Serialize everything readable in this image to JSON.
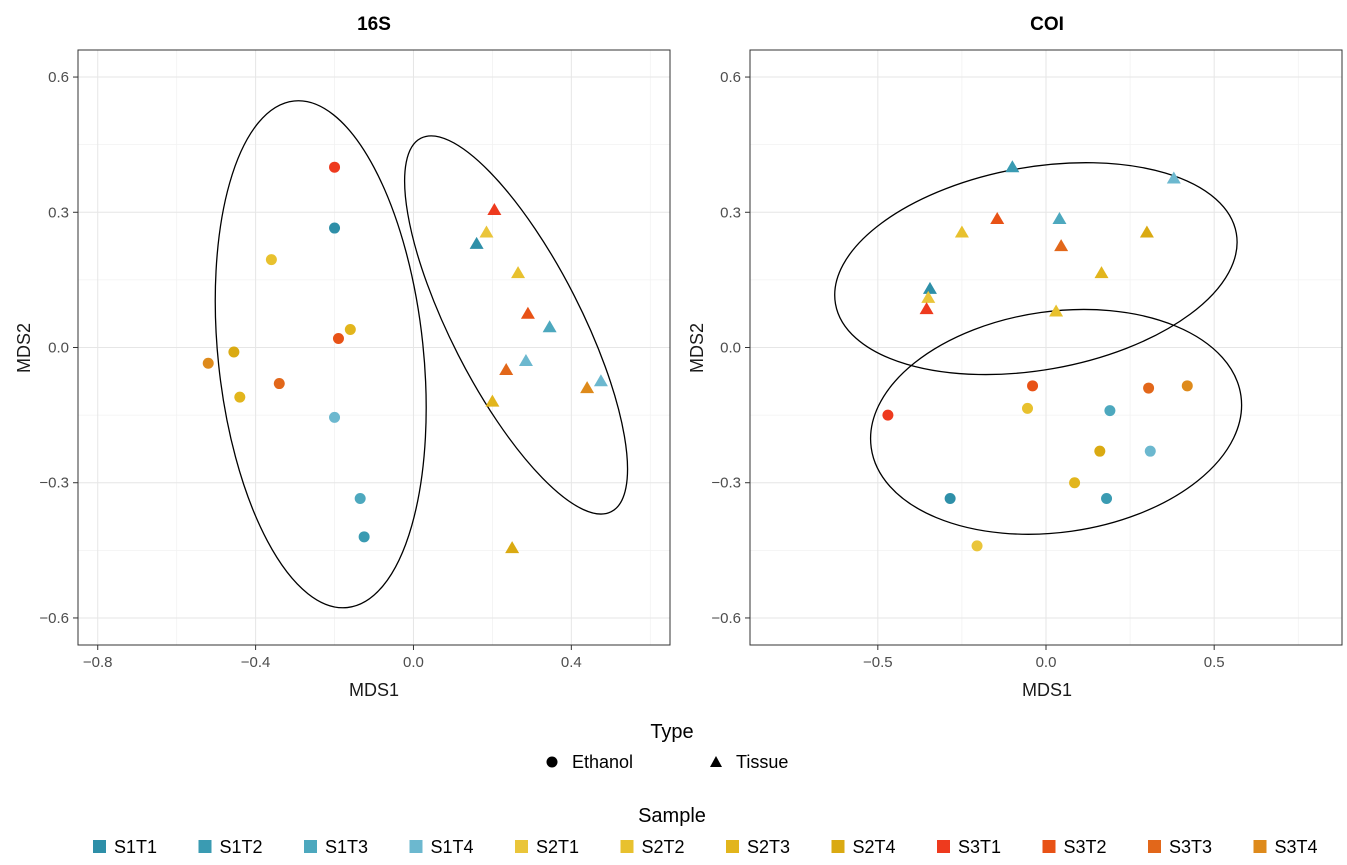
{
  "chart_data": [
    {
      "type": "scatter",
      "title": "16S",
      "xlabel": "MDS1",
      "ylabel": "MDS2",
      "xlim": [
        -0.85,
        0.65
      ],
      "ylim": [
        -0.66,
        0.66
      ],
      "xticks": [
        -0.8,
        -0.4,
        0.0,
        0.4
      ],
      "xtick_labels": [
        "−0.8",
        "−0.4",
        "0.0",
        "0.4"
      ],
      "yticks": [
        -0.6,
        -0.3,
        0.0,
        0.3,
        0.6
      ],
      "ytick_labels": [
        "−0.6",
        "−0.3",
        "0.0",
        "0.3",
        "0.6"
      ],
      "grid": true,
      "points": [
        {
          "sample": "S3T1",
          "type": "Ethanol",
          "x": -0.2,
          "y": 0.4
        },
        {
          "sample": "S1T1",
          "type": "Ethanol",
          "x": -0.2,
          "y": 0.265
        },
        {
          "sample": "S2T2",
          "type": "Ethanol",
          "x": -0.36,
          "y": 0.195
        },
        {
          "sample": "S2T3",
          "type": "Ethanol",
          "x": -0.16,
          "y": 0.04
        },
        {
          "sample": "S3T2",
          "type": "Ethanol",
          "x": -0.19,
          "y": 0.02
        },
        {
          "sample": "S2T4",
          "type": "Ethanol",
          "x": -0.455,
          "y": -0.01
        },
        {
          "sample": "S3T4",
          "type": "Ethanol",
          "x": -0.52,
          "y": -0.035
        },
        {
          "sample": "S3T3",
          "type": "Ethanol",
          "x": -0.34,
          "y": -0.08
        },
        {
          "sample": "S2T3",
          "type": "Ethanol",
          "x": -0.44,
          "y": -0.11
        },
        {
          "sample": "S1T4",
          "type": "Ethanol",
          "x": -0.2,
          "y": -0.155
        },
        {
          "sample": "S1T3",
          "type": "Ethanol",
          "x": -0.135,
          "y": -0.335
        },
        {
          "sample": "S1T2",
          "type": "Ethanol",
          "x": -0.125,
          "y": -0.42
        },
        {
          "sample": "S3T1",
          "type": "Tissue",
          "x": 0.205,
          "y": 0.305
        },
        {
          "sample": "S2T1",
          "type": "Tissue",
          "x": 0.185,
          "y": 0.255
        },
        {
          "sample": "S1T1",
          "type": "Tissue",
          "x": 0.16,
          "y": 0.23
        },
        {
          "sample": "S2T2",
          "type": "Tissue",
          "x": 0.265,
          "y": 0.165
        },
        {
          "sample": "S3T2",
          "type": "Tissue",
          "x": 0.29,
          "y": 0.075
        },
        {
          "sample": "S1T3",
          "type": "Tissue",
          "x": 0.345,
          "y": 0.045
        },
        {
          "sample": "S1T4",
          "type": "Tissue",
          "x": 0.285,
          "y": -0.03
        },
        {
          "sample": "S3T3",
          "type": "Tissue",
          "x": 0.235,
          "y": -0.05
        },
        {
          "sample": "S1T4",
          "type": "Tissue",
          "x": 0.475,
          "y": -0.075
        },
        {
          "sample": "S3T4",
          "type": "Tissue",
          "x": 0.44,
          "y": -0.09
        },
        {
          "sample": "S2T3",
          "type": "Tissue",
          "x": 0.2,
          "y": -0.12
        },
        {
          "sample": "S2T4",
          "type": "Tissue",
          "x": 0.25,
          "y": -0.445
        }
      ],
      "ellipses": [
        {
          "cx": -0.235,
          "cy": -0.015,
          "rx": 0.26,
          "ry": 0.565,
          "angle": 6
        },
        {
          "cx": 0.26,
          "cy": 0.05,
          "rx": 0.165,
          "ry": 0.465,
          "angle": 27
        }
      ]
    },
    {
      "type": "scatter",
      "title": "COI",
      "xlabel": "MDS1",
      "ylabel": "MDS2",
      "xlim": [
        -0.88,
        0.88
      ],
      "ylim": [
        -0.66,
        0.66
      ],
      "xticks": [
        -0.5,
        0.0,
        0.5
      ],
      "xtick_labels": [
        "−0.5",
        "0.0",
        "0.5"
      ],
      "yticks": [
        -0.6,
        -0.3,
        0.0,
        0.3,
        0.6
      ],
      "ytick_labels": [
        "−0.6",
        "−0.3",
        "0.0",
        "0.3",
        "0.6"
      ],
      "grid": true,
      "points": [
        {
          "sample": "S1T2",
          "type": "Tissue",
          "x": -0.1,
          "y": 0.4
        },
        {
          "sample": "S1T4",
          "type": "Tissue",
          "x": 0.38,
          "y": 0.375
        },
        {
          "sample": "S3T2",
          "type": "Tissue",
          "x": -0.145,
          "y": 0.285
        },
        {
          "sample": "S1T3",
          "type": "Tissue",
          "x": 0.04,
          "y": 0.285
        },
        {
          "sample": "S2T2",
          "type": "Tissue",
          "x": -0.25,
          "y": 0.255
        },
        {
          "sample": "S2T4",
          "type": "Tissue",
          "x": 0.3,
          "y": 0.255
        },
        {
          "sample": "S3T3",
          "type": "Tissue",
          "x": 0.045,
          "y": 0.225
        },
        {
          "sample": "S2T3",
          "type": "Tissue",
          "x": 0.165,
          "y": 0.165
        },
        {
          "sample": "S1T1",
          "type": "Tissue",
          "x": -0.345,
          "y": 0.13
        },
        {
          "sample": "S2T1",
          "type": "Tissue",
          "x": -0.35,
          "y": 0.11
        },
        {
          "sample": "S3T1",
          "type": "Tissue",
          "x": -0.355,
          "y": 0.085
        },
        {
          "sample": "S2T2",
          "type": "Tissue",
          "x": 0.03,
          "y": 0.08
        },
        {
          "sample": "S3T2",
          "type": "Ethanol",
          "x": -0.04,
          "y": -0.085
        },
        {
          "sample": "S3T4",
          "type": "Ethanol",
          "x": 0.42,
          "y": -0.085
        },
        {
          "sample": "S3T3",
          "type": "Ethanol",
          "x": 0.305,
          "y": -0.09
        },
        {
          "sample": "S3T1",
          "type": "Ethanol",
          "x": -0.47,
          "y": -0.15
        },
        {
          "sample": "S2T2",
          "type": "Ethanol",
          "x": -0.055,
          "y": -0.135
        },
        {
          "sample": "S1T3",
          "type": "Ethanol",
          "x": 0.19,
          "y": -0.14
        },
        {
          "sample": "S2T4",
          "type": "Ethanol",
          "x": 0.16,
          "y": -0.23
        },
        {
          "sample": "S1T4",
          "type": "Ethanol",
          "x": 0.31,
          "y": -0.23
        },
        {
          "sample": "S2T3",
          "type": "Ethanol",
          "x": 0.085,
          "y": -0.3
        },
        {
          "sample": "S1T1",
          "type": "Ethanol",
          "x": -0.285,
          "y": -0.335
        },
        {
          "sample": "S1T2",
          "type": "Ethanol",
          "x": 0.18,
          "y": -0.335
        },
        {
          "sample": "S2T1",
          "type": "Ethanol",
          "x": -0.205,
          "y": -0.44
        }
      ],
      "ellipses": [
        {
          "cx": -0.03,
          "cy": 0.175,
          "rx": 0.605,
          "ry": 0.225,
          "angle": 10
        },
        {
          "cx": 0.03,
          "cy": -0.165,
          "rx": 0.555,
          "ry": 0.245,
          "angle": 8
        }
      ]
    }
  ],
  "legend": {
    "type": {
      "title": "Type",
      "items": [
        {
          "label": "Ethanol",
          "shape": "circle"
        },
        {
          "label": "Tissue",
          "shape": "triangle"
        }
      ]
    },
    "sample": {
      "title": "Sample",
      "items": [
        {
          "label": "S1T1",
          "color": "#2E8FA8"
        },
        {
          "label": "S1T2",
          "color": "#3A9BB2"
        },
        {
          "label": "S1T3",
          "color": "#4DA8BE"
        },
        {
          "label": "S1T4",
          "color": "#6CB8CF"
        },
        {
          "label": "S2T1",
          "color": "#EAC53A"
        },
        {
          "label": "S2T2",
          "color": "#E8C12E"
        },
        {
          "label": "S2T3",
          "color": "#E2B51C"
        },
        {
          "label": "S2T4",
          "color": "#DAAA12"
        },
        {
          "label": "S3T1",
          "color": "#EE3A1E"
        },
        {
          "label": "S3T2",
          "color": "#E85216"
        },
        {
          "label": "S3T3",
          "color": "#E2671A"
        },
        {
          "label": "S3T4",
          "color": "#DE8A1B"
        }
      ]
    }
  }
}
